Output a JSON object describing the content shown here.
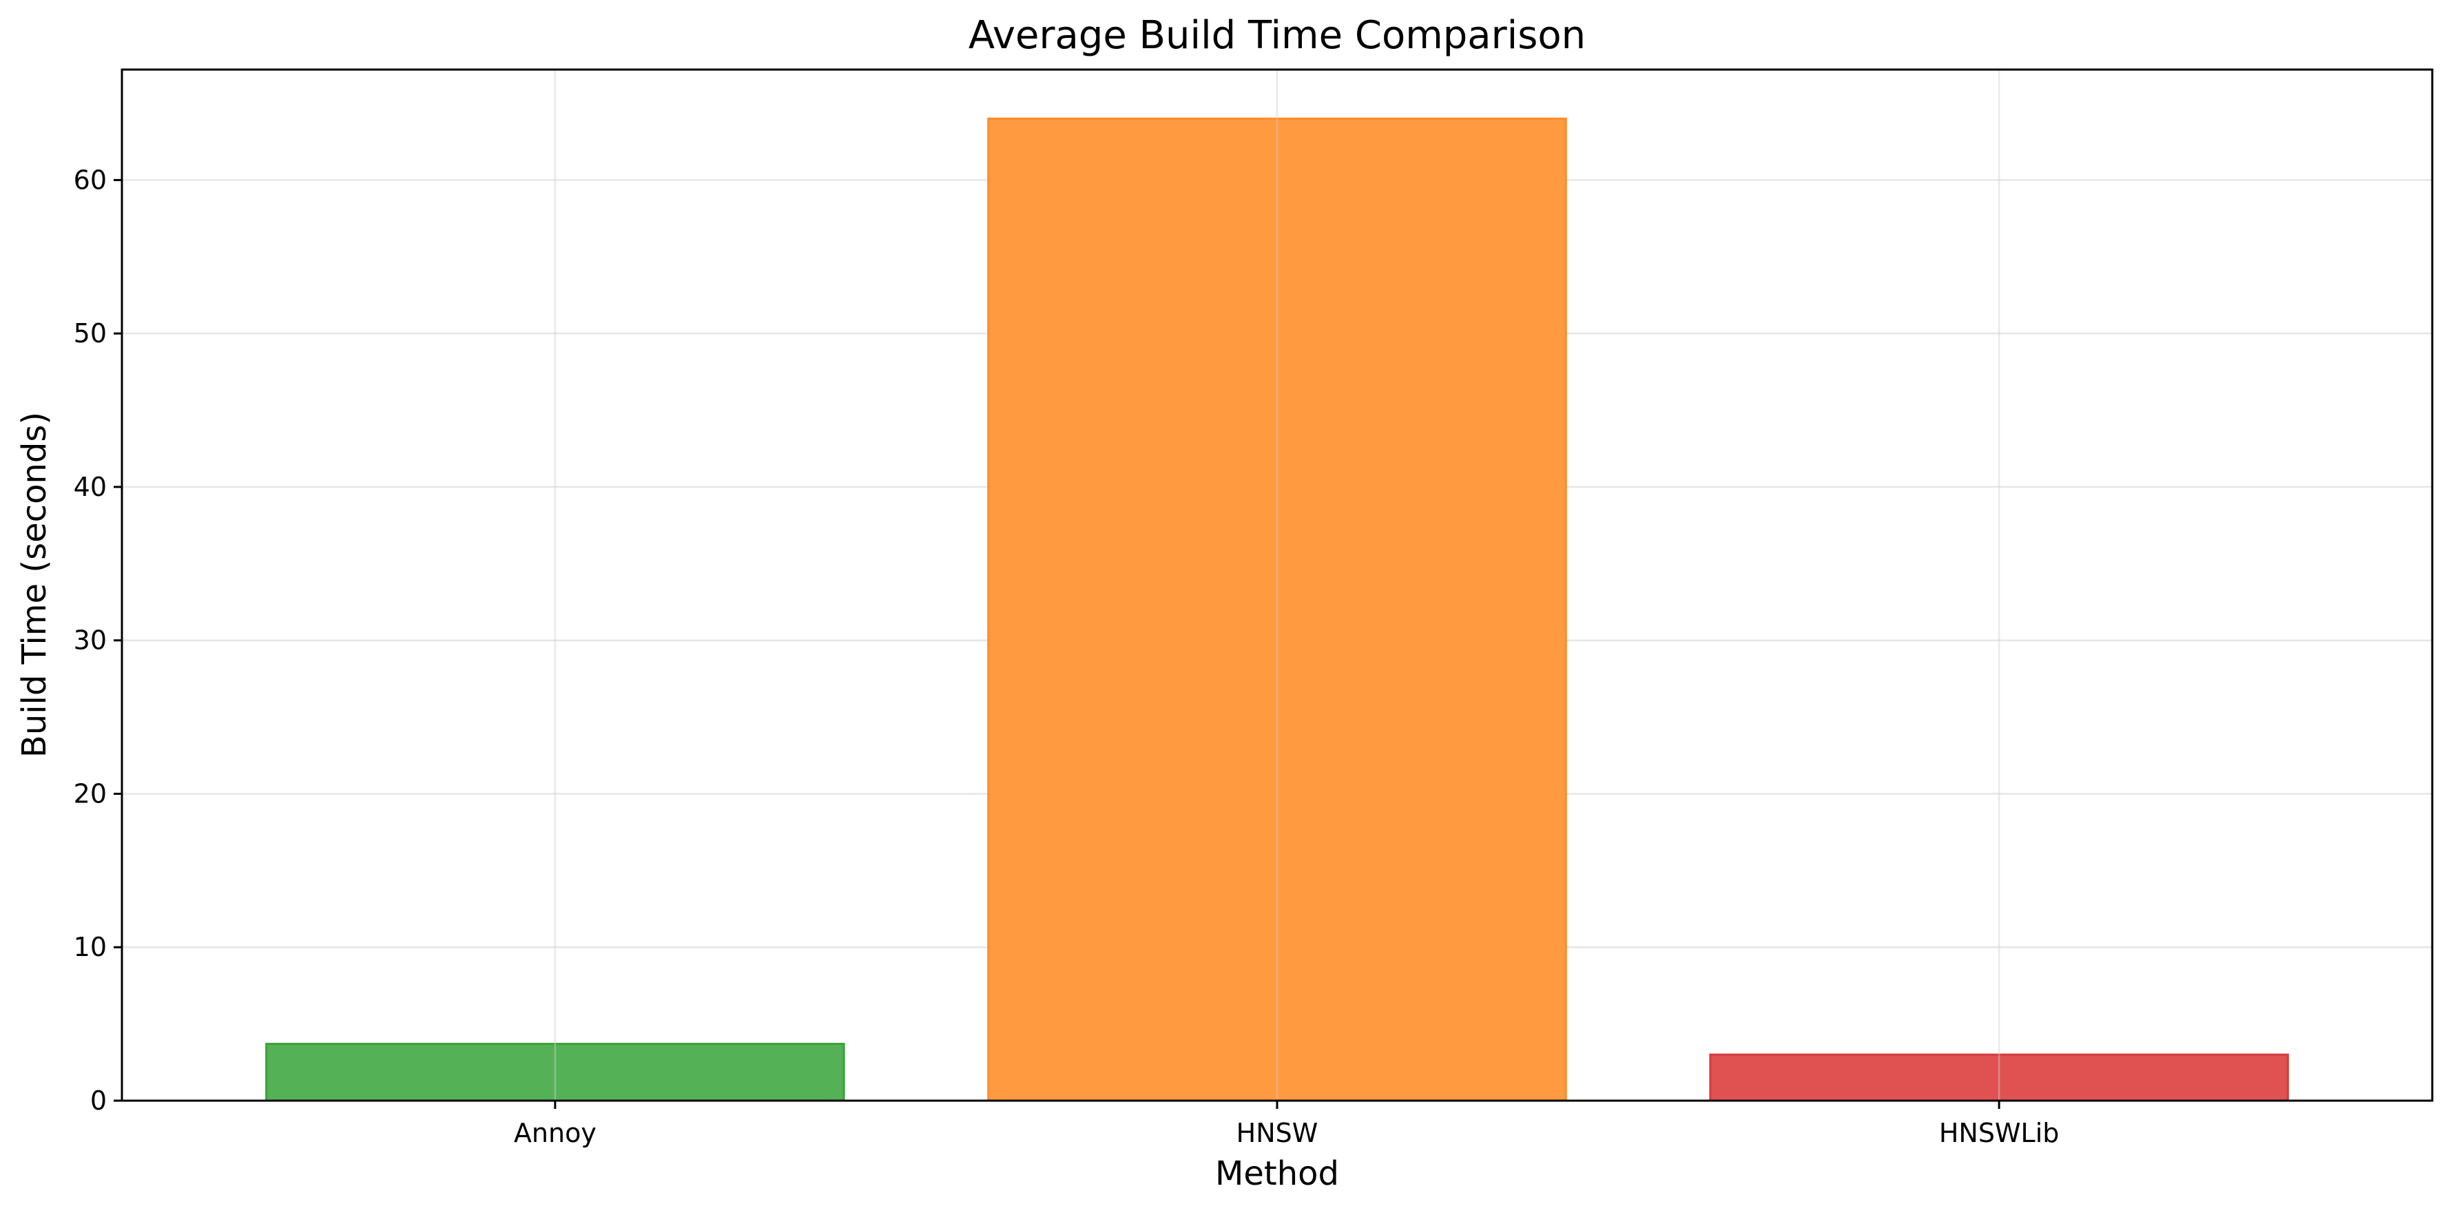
{
  "chart_data": {
    "type": "bar",
    "title": "Average Build Time Comparison",
    "xlabel": "Method",
    "ylabel": "Build Time (seconds)",
    "categories": [
      "Annoy",
      "HNSW",
      "HNSWLib"
    ],
    "values": [
      3.7,
      64.0,
      3.0
    ],
    "colors": [
      "#55b155",
      "#ff9a40",
      "#e05252"
    ],
    "edge_colors": [
      "#3aa03a",
      "#ff8a2a",
      "#d63a3a"
    ],
    "ylim": [
      0,
      67.2
    ],
    "yticks": [
      0,
      10,
      20,
      30,
      40,
      50,
      60
    ],
    "grid": true,
    "legend": false
  }
}
